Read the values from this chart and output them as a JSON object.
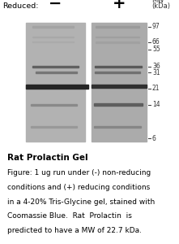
{
  "title": "Rat Prolactin Gel",
  "caption_line1": "Figure: 1 ug run under (-) non-reducing",
  "caption_line2": "conditions and (+) reducing conditions",
  "caption_line3": "in a 4-20% Tris-Glycine gel, stained with",
  "caption_line4": "Coomassie Blue.  Rat  Prolactin  is",
  "caption_line5": "predicted to have a MW of 22.7 kDa.",
  "label_reduced": "Reduced:",
  "label_minus": "−",
  "label_plus": "+",
  "mw_label_line1": "MW",
  "mw_label_line2": "(kDa)",
  "mw_markers": [
    97,
    66,
    55,
    36,
    31,
    21,
    14,
    6
  ],
  "gel_bg_color1": "#b2b2b2",
  "gel_bg_color2": "#ababab",
  "figure_bg": "#ffffff"
}
